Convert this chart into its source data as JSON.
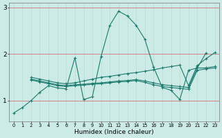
{
  "title": "",
  "xlabel": "Humidex (Indice chaleur)",
  "bg_color": "#cceae6",
  "line_color": "#1a7a6e",
  "grid_color_h": "#d98080",
  "grid_color_v": "#b8ddd9",
  "xlim": [
    -0.5,
    23.5
  ],
  "ylim": [
    0.55,
    3.1
  ],
  "yticks": [
    1,
    2,
    3
  ],
  "xticks": [
    0,
    1,
    2,
    3,
    4,
    5,
    6,
    7,
    8,
    9,
    10,
    11,
    12,
    13,
    14,
    15,
    16,
    17,
    18,
    19,
    20,
    21,
    22,
    23
  ],
  "lines": [
    {
      "x": [
        0,
        1,
        2,
        3,
        4,
        5,
        6,
        7,
        8,
        9,
        10,
        11,
        12,
        13,
        14,
        15,
        16,
        17,
        18,
        19,
        20,
        21,
        22
      ],
      "y": [
        0.73,
        0.85,
        1.0,
        1.18,
        1.32,
        1.27,
        1.25,
        1.92,
        1.02,
        1.08,
        1.95,
        2.62,
        2.92,
        2.82,
        2.62,
        2.32,
        1.72,
        1.28,
        1.22,
        1.02,
        1.65,
        1.7,
        2.02
      ]
    },
    {
      "x": [
        2,
        3,
        4,
        5,
        6,
        7,
        8,
        9,
        10,
        11,
        12,
        13,
        14,
        15,
        16,
        17,
        18,
        19,
        20,
        21,
        22,
        23
      ],
      "y": [
        1.5,
        1.46,
        1.42,
        1.38,
        1.36,
        1.38,
        1.42,
        1.46,
        1.5,
        1.52,
        1.55,
        1.58,
        1.6,
        1.63,
        1.66,
        1.7,
        1.73,
        1.76,
        1.32,
        1.75,
        1.9,
        2.03
      ]
    },
    {
      "x": [
        2,
        3,
        4,
        5,
        6,
        7,
        8,
        9,
        10,
        11,
        12,
        13,
        14,
        15,
        16,
        17,
        18,
        19,
        20,
        21,
        22,
        23
      ],
      "y": [
        1.46,
        1.42,
        1.38,
        1.34,
        1.32,
        1.34,
        1.35,
        1.37,
        1.38,
        1.4,
        1.42,
        1.43,
        1.45,
        1.42,
        1.38,
        1.34,
        1.32,
        1.3,
        1.28,
        1.7,
        1.7,
        1.73
      ]
    },
    {
      "x": [
        2,
        3,
        4,
        5,
        6,
        7,
        8,
        9,
        10,
        11,
        12,
        13,
        14,
        15,
        16,
        17,
        18,
        19,
        20,
        21,
        22,
        23
      ],
      "y": [
        1.44,
        1.4,
        1.36,
        1.32,
        1.3,
        1.32,
        1.33,
        1.35,
        1.36,
        1.38,
        1.4,
        1.41,
        1.43,
        1.39,
        1.34,
        1.3,
        1.28,
        1.26,
        1.24,
        1.65,
        1.68,
        1.7
      ]
    }
  ]
}
